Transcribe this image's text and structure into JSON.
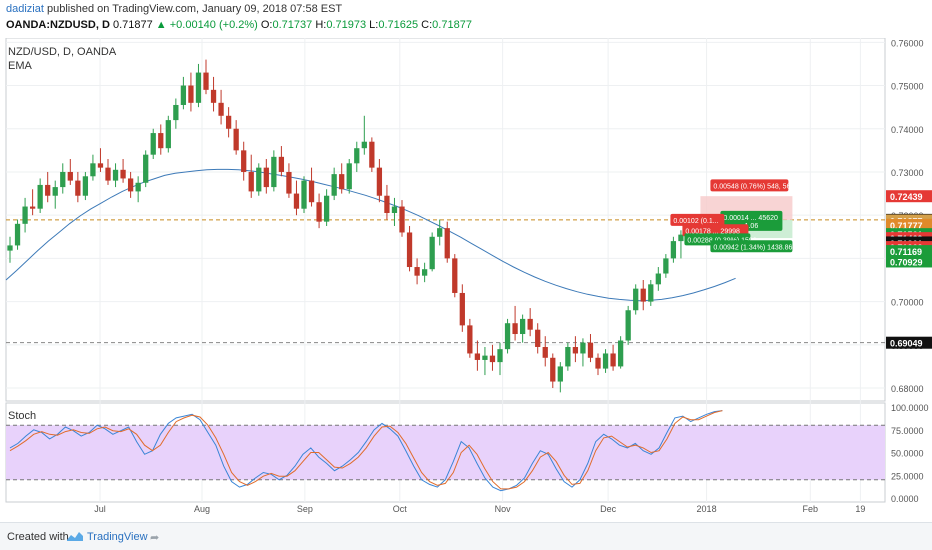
{
  "header": {
    "author": "dadiziat",
    "published_text": "published on TradingView.com, January 09, 2018 07:58 EST",
    "symbol": "OANDA:NZDUSD",
    "interval": ", D",
    "last": "0.71877",
    "change_arrow": "▲",
    "change": "+0.00140 (+0.2%)",
    "o_label": "O:",
    "o": "0.71737",
    "h_label": "H:",
    "h": "0.71973",
    "l_label": "L:",
    "l": "0.71625",
    "c_label": "C:",
    "c": "0.71877"
  },
  "legend": {
    "title": "NZD/USD, D, OANDA",
    "ema": "EMA",
    "stoch": "Stoch"
  },
  "footer": {
    "created": "Created with",
    "brand": "TradingView",
    "share_icon": "share-icon"
  },
  "colors": {
    "up": "#2e9e4f",
    "down": "#c0392b",
    "ema": "#3d7ab8",
    "stoch_k": "#3a85d6",
    "stoch_d": "#e06c2c",
    "stoch_band": "#e8d2fb",
    "dashed": "#c88a1f"
  },
  "chart_data": [
    {
      "type": "candlestick",
      "title": "NZD/USD, D, OANDA",
      "ylim": [
        0.677,
        0.761
      ],
      "y_ticks": [
        "0.76000",
        "0.75000",
        "0.74000",
        "0.73000",
        "0.72000",
        "0.71000",
        "0.70000",
        "0.69000",
        "0.68000"
      ],
      "x_ticks": [
        "Jul",
        "Aug",
        "Sep",
        "Oct",
        "Nov",
        "Dec",
        "2018",
        "Feb",
        "19"
      ],
      "ohlc": [
        [
          0.7118,
          0.715,
          0.709,
          0.713
        ],
        [
          0.713,
          0.719,
          0.712,
          0.718
        ],
        [
          0.718,
          0.724,
          0.716,
          0.722
        ],
        [
          0.722,
          0.726,
          0.72,
          0.7215
        ],
        [
          0.7215,
          0.7285,
          0.7205,
          0.727
        ],
        [
          0.727,
          0.73,
          0.723,
          0.7245
        ],
        [
          0.7245,
          0.728,
          0.7215,
          0.7265
        ],
        [
          0.7265,
          0.732,
          0.725,
          0.73
        ],
        [
          0.73,
          0.733,
          0.727,
          0.728
        ],
        [
          0.728,
          0.73,
          0.723,
          0.7245
        ],
        [
          0.7245,
          0.73,
          0.7235,
          0.729
        ],
        [
          0.729,
          0.734,
          0.728,
          0.732
        ],
        [
          0.732,
          0.7355,
          0.73,
          0.731
        ],
        [
          0.731,
          0.733,
          0.727,
          0.728
        ],
        [
          0.728,
          0.732,
          0.7265,
          0.7305
        ],
        [
          0.7305,
          0.733,
          0.7275,
          0.7285
        ],
        [
          0.7285,
          0.73,
          0.724,
          0.7255
        ],
        [
          0.7255,
          0.729,
          0.723,
          0.7275
        ],
        [
          0.7275,
          0.735,
          0.7265,
          0.734
        ],
        [
          0.734,
          0.74,
          0.733,
          0.739
        ],
        [
          0.739,
          0.741,
          0.734,
          0.7355
        ],
        [
          0.7355,
          0.743,
          0.7345,
          0.742
        ],
        [
          0.742,
          0.747,
          0.74,
          0.7455
        ],
        [
          0.7455,
          0.752,
          0.7445,
          0.75
        ],
        [
          0.75,
          0.753,
          0.744,
          0.746
        ],
        [
          0.746,
          0.755,
          0.745,
          0.753
        ],
        [
          0.753,
          0.756,
          0.748,
          0.749
        ],
        [
          0.749,
          0.752,
          0.744,
          0.746
        ],
        [
          0.746,
          0.749,
          0.741,
          0.743
        ],
        [
          0.743,
          0.745,
          0.738,
          0.74
        ],
        [
          0.74,
          0.742,
          0.734,
          0.735
        ],
        [
          0.735,
          0.737,
          0.728,
          0.73
        ],
        [
          0.73,
          0.734,
          0.724,
          0.7255
        ],
        [
          0.7255,
          0.732,
          0.7245,
          0.731
        ],
        [
          0.731,
          0.733,
          0.725,
          0.7265
        ],
        [
          0.7265,
          0.735,
          0.7255,
          0.7335
        ],
        [
          0.7335,
          0.736,
          0.729,
          0.73
        ],
        [
          0.73,
          0.732,
          0.724,
          0.725
        ],
        [
          0.725,
          0.728,
          0.72,
          0.7215
        ],
        [
          0.7215,
          0.729,
          0.7205,
          0.728
        ],
        [
          0.728,
          0.731,
          0.722,
          0.723
        ],
        [
          0.723,
          0.725,
          0.717,
          0.7185
        ],
        [
          0.7185,
          0.726,
          0.7175,
          0.7245
        ],
        [
          0.7245,
          0.731,
          0.7235,
          0.7295
        ],
        [
          0.7295,
          0.732,
          0.725,
          0.726
        ],
        [
          0.726,
          0.733,
          0.725,
          0.732
        ],
        [
          0.732,
          0.737,
          0.73,
          0.7355
        ],
        [
          0.7355,
          0.743,
          0.734,
          0.737
        ],
        [
          0.737,
          0.738,
          0.73,
          0.731
        ],
        [
          0.731,
          0.733,
          0.723,
          0.7245
        ],
        [
          0.7245,
          0.727,
          0.719,
          0.7205
        ],
        [
          0.7205,
          0.724,
          0.7175,
          0.722
        ],
        [
          0.722,
          0.7235,
          0.715,
          0.716
        ],
        [
          0.716,
          0.7175,
          0.707,
          0.708
        ],
        [
          0.708,
          0.71,
          0.704,
          0.706
        ],
        [
          0.706,
          0.709,
          0.7045,
          0.7075
        ],
        [
          0.7075,
          0.716,
          0.707,
          0.715
        ],
        [
          0.715,
          0.719,
          0.713,
          0.717
        ],
        [
          0.717,
          0.7185,
          0.709,
          0.71
        ],
        [
          0.71,
          0.711,
          0.701,
          0.702
        ],
        [
          0.702,
          0.704,
          0.693,
          0.6945
        ],
        [
          0.6945,
          0.696,
          0.687,
          0.688
        ],
        [
          0.688,
          0.691,
          0.684,
          0.6865
        ],
        [
          0.6865,
          0.6895,
          0.683,
          0.6875
        ],
        [
          0.6875,
          0.69,
          0.684,
          0.686
        ],
        [
          0.686,
          0.6905,
          0.683,
          0.689
        ],
        [
          0.689,
          0.696,
          0.688,
          0.695
        ],
        [
          0.695,
          0.699,
          0.691,
          0.6925
        ],
        [
          0.6925,
          0.697,
          0.6905,
          0.696
        ],
        [
          0.696,
          0.6985,
          0.692,
          0.6935
        ],
        [
          0.6935,
          0.695,
          0.688,
          0.6895
        ],
        [
          0.6895,
          0.692,
          0.685,
          0.687
        ],
        [
          0.687,
          0.688,
          0.68,
          0.6815
        ],
        [
          0.6815,
          0.686,
          0.679,
          0.685
        ],
        [
          0.685,
          0.6905,
          0.684,
          0.6895
        ],
        [
          0.6895,
          0.692,
          0.686,
          0.688
        ],
        [
          0.688,
          0.6915,
          0.685,
          0.6905
        ],
        [
          0.6905,
          0.6925,
          0.686,
          0.687
        ],
        [
          0.687,
          0.688,
          0.683,
          0.6845
        ],
        [
          0.6845,
          0.689,
          0.6835,
          0.688
        ],
        [
          0.688,
          0.69,
          0.684,
          0.685
        ],
        [
          0.685,
          0.692,
          0.6845,
          0.691
        ],
        [
          0.691,
          0.699,
          0.69,
          0.698
        ],
        [
          0.698,
          0.704,
          0.697,
          0.703
        ],
        [
          0.703,
          0.705,
          0.698,
          0.7
        ],
        [
          0.7,
          0.705,
          0.699,
          0.704
        ],
        [
          0.704,
          0.708,
          0.7025,
          0.7065
        ],
        [
          0.7065,
          0.711,
          0.7055,
          0.71
        ],
        [
          0.71,
          0.715,
          0.709,
          0.714
        ],
        [
          0.714,
          0.7165,
          0.71,
          0.7155
        ],
        [
          0.7155,
          0.719,
          0.714,
          0.718
        ],
        [
          0.718,
          0.7197,
          0.716,
          0.7188
        ]
      ],
      "ema": [
        0.705,
        0.7072,
        0.7095,
        0.7118,
        0.714,
        0.716,
        0.718,
        0.7198,
        0.7214,
        0.7228,
        0.7242,
        0.7255,
        0.7266,
        0.7276,
        0.7284,
        0.7292,
        0.7297,
        0.73,
        0.7303,
        0.7305,
        0.7306,
        0.7306,
        0.7305,
        0.7303,
        0.73,
        0.7296,
        0.7292,
        0.7288,
        0.7283,
        0.7278,
        0.7272,
        0.7266,
        0.726,
        0.7253,
        0.7246,
        0.7238,
        0.7229,
        0.722,
        0.721,
        0.7199,
        0.7187,
        0.7175,
        0.7162,
        0.7149,
        0.7135,
        0.7121,
        0.7107,
        0.7093,
        0.708,
        0.7068,
        0.7057,
        0.7047,
        0.7038,
        0.703,
        0.7023,
        0.7017,
        0.7012,
        0.7008,
        0.7005,
        0.7003,
        0.7002,
        0.7003,
        0.7005,
        0.7009,
        0.7014,
        0.702,
        0.7027,
        0.7035,
        0.7044,
        0.7054
      ],
      "levels": [
        {
          "value": 0.7189,
          "style": "dashed",
          "color": "#c88a1f"
        },
        {
          "value": 0.6905,
          "style": "dashed",
          "color": "#888888"
        }
      ],
      "price_labels": [
        {
          "text": "0.72439",
          "value": 0.72439,
          "bg": "#e53935",
          "fg": "#ffffff"
        },
        {
          "text": "0.71891",
          "value": 0.71891,
          "bg": "#111111",
          "fg": "#ffffff"
        },
        {
          "text": "0.71877",
          "value": 0.71877,
          "bg": "#d4a04a",
          "fg": "#ffffff"
        },
        {
          "text": "0.71777",
          "value": 0.71777,
          "bg": "#e08a2a",
          "fg": "#ffffff"
        },
        {
          "text": "0.71561",
          "value": 0.71561,
          "bg": "#1b9c3a",
          "fg": "#ffffff"
        },
        {
          "text": "0.71469",
          "value": 0.71469,
          "bg": "#e53935",
          "fg": "#ffffff"
        },
        {
          "text": "0.71369",
          "value": 0.71369,
          "bg": "#111111",
          "fg": "#ffffff"
        },
        {
          "text": "0.71361",
          "value": 0.71361,
          "bg": "#111111",
          "fg": "#ffffff"
        },
        {
          "text": "0.71262",
          "value": 0.71262,
          "bg": "#e53935",
          "fg": "#ffffff"
        },
        {
          "text": "0.71169",
          "value": 0.71169,
          "bg": "#1b9c3a",
          "fg": "#ffffff"
        },
        {
          "text": "0.70929",
          "value": 0.70929,
          "bg": "#1b9c3a",
          "fg": "#ffffff"
        },
        {
          "text": "0.69049",
          "value": 0.69049,
          "bg": "#111111",
          "fg": "#ffffff"
        }
      ],
      "trade_boxes": [
        {
          "text": "0.00548 (0.76%) 548, 56",
          "color": "#e53935",
          "kind": "label"
        },
        {
          "text": "0.00014 ... 45620",
          "sub": "1.06",
          "color": "#1b9c3a",
          "kind": "label"
        },
        {
          "text": "0.00102 (0.1...",
          "color": "#e53935",
          "kind": "label"
        },
        {
          "text": "0.00178 ... 29998",
          "color": "#e53935",
          "kind": "label"
        },
        {
          "text": "0.00288 (0.39%) 1598",
          "color": "#1b9c3a",
          "kind": "label"
        },
        {
          "text": "0.00942 (1.34%) 1438.86",
          "color": "#1b9c3a",
          "kind": "label"
        }
      ]
    },
    {
      "type": "line",
      "title": "Stoch",
      "ylim": [
        0,
        100
      ],
      "y_ticks": [
        "100.0000",
        "75.0000",
        "50.0000",
        "25.0000",
        "0.0000"
      ],
      "band": [
        20,
        80
      ],
      "series": [
        {
          "name": "%K",
          "color": "#3a85d6",
          "values": [
            55,
            60,
            68,
            75,
            72,
            65,
            70,
            78,
            74,
            68,
            72,
            80,
            76,
            70,
            74,
            78,
            62,
            48,
            52,
            70,
            82,
            88,
            90,
            92,
            86,
            72,
            58,
            35,
            18,
            12,
            15,
            22,
            28,
            26,
            20,
            25,
            35,
            48,
            55,
            45,
            38,
            30,
            35,
            42,
            50,
            62,
            75,
            82,
            76,
            68,
            52,
            35,
            20,
            15,
            12,
            20,
            40,
            62,
            55,
            38,
            22,
            12,
            8,
            10,
            14,
            22,
            38,
            52,
            48,
            32,
            18,
            12,
            20,
            38,
            62,
            70,
            65,
            58,
            55,
            60,
            52,
            48,
            55,
            72,
            88,
            90,
            84,
            88,
            92,
            95,
            96
          ]
        },
        {
          "name": "%D",
          "color": "#e06c2c",
          "values": [
            52,
            57,
            63,
            70,
            73,
            70,
            69,
            73,
            75,
            72,
            71,
            76,
            78,
            74,
            73,
            76,
            70,
            58,
            52,
            58,
            72,
            84,
            88,
            91,
            89,
            80,
            66,
            48,
            28,
            18,
            14,
            18,
            24,
            27,
            24,
            24,
            30,
            40,
            50,
            50,
            42,
            34,
            33,
            38,
            45,
            55,
            68,
            78,
            79,
            72,
            60,
            44,
            28,
            18,
            14,
            16,
            28,
            50,
            58,
            48,
            32,
            18,
            10,
            10,
            12,
            18,
            30,
            45,
            50,
            40,
            25,
            15,
            16,
            30,
            52,
            66,
            68,
            62,
            56,
            58,
            55,
            50,
            52,
            65,
            82,
            89,
            86,
            86,
            90,
            94,
            96
          ]
        }
      ]
    }
  ]
}
